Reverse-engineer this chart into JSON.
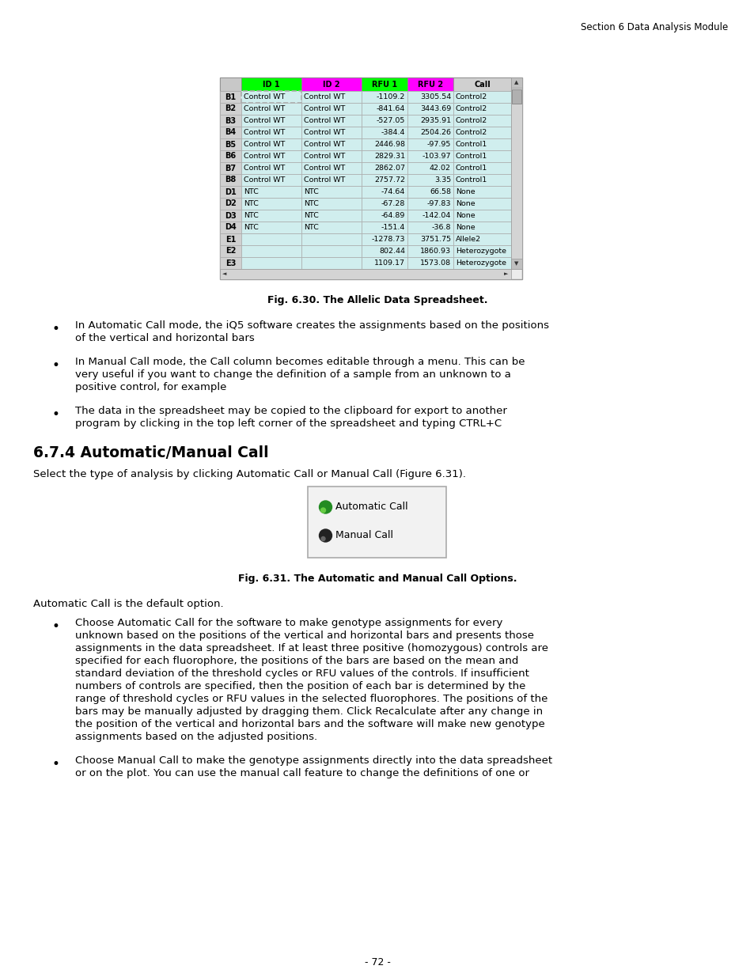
{
  "page_header": "Section 6 Data Analysis Module",
  "page_footer": "- 72 -",
  "fig1_caption": "Fig. 6.30. The Allelic Data Spreadsheet.",
  "fig2_caption": "Fig. 6.31. The Automatic and Manual Call Options.",
  "section_title": "6.7.4 Automatic/Manual Call",
  "section_intro": "Select the type of analysis by clicking Automatic Call or Manual Call (Figure 6.31).",
  "auto_call_default": "Automatic Call is the default option.",
  "table_headers": [
    "ID 1",
    "ID 2",
    "RFU 1",
    "RFU 2",
    "Call"
  ],
  "table_header_colors": [
    "#00ff00",
    "#ff00ff",
    "#00ff00",
    "#ff00ff",
    "#d0d0d0"
  ],
  "table_rows": [
    [
      "B1",
      "Control WT",
      "Control WT",
      "-1109.2",
      "3305.54",
      "Control2"
    ],
    [
      "B2",
      "Control WT",
      "Control WT",
      "-841.64",
      "3443.69",
      "Control2"
    ],
    [
      "B3",
      "Control WT",
      "Control WT",
      "-527.05",
      "2935.91",
      "Control2"
    ],
    [
      "B4",
      "Control WT",
      "Control WT",
      "-384.4",
      "2504.26",
      "Control2"
    ],
    [
      "B5",
      "Control WT",
      "Control WT",
      "2446.98",
      "-97.95",
      "Control1"
    ],
    [
      "B6",
      "Control WT",
      "Control WT",
      "2829.31",
      "-103.97",
      "Control1"
    ],
    [
      "B7",
      "Control WT",
      "Control WT",
      "2862.07",
      "42.02",
      "Control1"
    ],
    [
      "B8",
      "Control WT",
      "Control WT",
      "2757.72",
      "3.35",
      "Control1"
    ],
    [
      "D1",
      "NTC",
      "NTC",
      "-74.64",
      "66.58",
      "None"
    ],
    [
      "D2",
      "NTC",
      "NTC",
      "-67.28",
      "-97.83",
      "None"
    ],
    [
      "D3",
      "NTC",
      "NTC",
      "-64.89",
      "-142.04",
      "None"
    ],
    [
      "D4",
      "NTC",
      "NTC",
      "-151.4",
      "-36.8",
      "None"
    ],
    [
      "E1",
      "",
      "",
      "-1278.73",
      "3751.75",
      "Allele2"
    ],
    [
      "E2",
      "",
      "",
      "802.44",
      "1860.93",
      "Heterozygote"
    ],
    [
      "E3",
      "",
      "",
      "1109.17",
      "1573.08",
      "Heterozygote"
    ]
  ],
  "bullet_points_lines": [
    [
      "In Automatic Call mode, the iQ5 software creates the assignments based on the positions",
      "of the vertical and horizontal bars"
    ],
    [
      "In Manual Call mode, the Call column becomes editable through a menu. This can be",
      "very useful if you want to change the definition of a sample from an unknown to a",
      "positive control, for example"
    ],
    [
      "The data in the spreadsheet may be copied to the clipboard for export to another",
      "program by clicking in the top left corner of the spreadsheet and typing CTRL+C"
    ]
  ],
  "bullet_long1_lines": [
    "Choose Automatic Call for the software to make genotype assignments for every",
    "unknown based on the positions of the vertical and horizontal bars and presents those",
    "assignments in the data spreadsheet. If at least three positive (homozygous) controls are",
    "specified for each fluorophore, the positions of the bars are based on the mean and",
    "standard deviation of the threshold cycles or RFU values of the controls. If insufficient",
    "numbers of controls are specified, then the position of each bar is determined by the",
    "range of threshold cycles or RFU values in the selected fluorophores. The positions of the",
    "bars may be manually adjusted by dragging them. Click Recalculate after any change in",
    "the position of the vertical and horizontal bars and the software will make new genotype",
    "assignments based on the adjusted positions."
  ],
  "bullet_long2_lines": [
    "Choose Manual Call to make the genotype assignments directly into the data spreadsheet",
    "or on the plot. You can use the manual call feature to change the definitions of one or"
  ]
}
